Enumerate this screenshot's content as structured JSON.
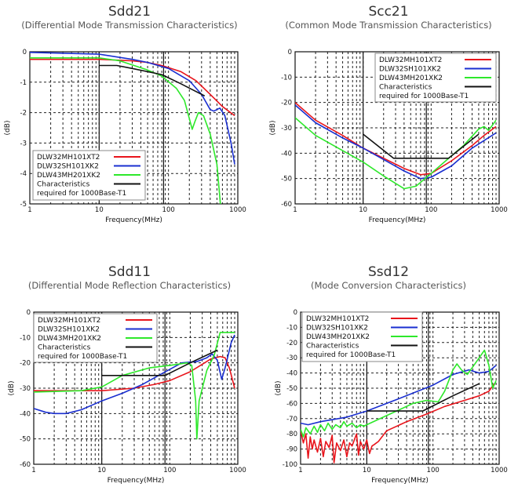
{
  "chart_data": [
    {
      "type": "line",
      "title": "Sdd21",
      "subtitle": "(Differential Mode Transmission Characteristics)",
      "xlabel": "Frequency(MHz)",
      "ylabel": "(dB)",
      "xscale": "log",
      "xlim": [
        1,
        1000
      ],
      "ylim": [
        -5,
        0
      ],
      "xticks": [
        "1",
        "10",
        "100",
        "1000"
      ],
      "yticks": [
        0,
        -1,
        -2,
        -3,
        -4,
        -5
      ],
      "grid": true,
      "legend": "bottom-left",
      "series": [
        {
          "name": "DLW32MH101XT2",
          "color": "#e8141b",
          "points": [
            [
              1,
              -0.25
            ],
            [
              10,
              -0.25
            ],
            [
              30,
              -0.3
            ],
            [
              50,
              -0.35
            ],
            [
              80,
              -0.45
            ],
            [
              150,
              -0.65
            ],
            [
              250,
              -0.95
            ],
            [
              400,
              -1.4
            ],
            [
              600,
              -1.8
            ],
            [
              900,
              -2.1
            ]
          ]
        },
        {
          "name": "DLW32SH101XK2",
          "color": "#1a2fd0",
          "points": [
            [
              1,
              -0.02
            ],
            [
              10,
              -0.08
            ],
            [
              30,
              -0.25
            ],
            [
              50,
              -0.35
            ],
            [
              100,
              -0.55
            ],
            [
              200,
              -0.95
            ],
            [
              300,
              -1.4
            ],
            [
              400,
              -1.9
            ],
            [
              450,
              -1.95
            ],
            [
              550,
              -1.85
            ],
            [
              650,
              -2.1
            ],
            [
              800,
              -3.0
            ],
            [
              900,
              -3.7
            ]
          ]
        },
        {
          "name": "DLW43MH201XK2",
          "color": "#2de82a",
          "points": [
            [
              1,
              -0.2
            ],
            [
              10,
              -0.2
            ],
            [
              20,
              -0.3
            ],
            [
              50,
              -0.6
            ],
            [
              80,
              -0.8
            ],
            [
              130,
              -1.2
            ],
            [
              170,
              -1.6
            ],
            [
              200,
              -2.2
            ],
            [
              220,
              -2.55
            ],
            [
              240,
              -2.3
            ],
            [
              270,
              -2.0
            ],
            [
              320,
              -2.1
            ],
            [
              400,
              -2.7
            ],
            [
              500,
              -3.7
            ],
            [
              560,
              -5.0
            ]
          ]
        },
        {
          "name": "Characteristics required for 1000Base-T1",
          "name_lines": [
            "Characteristics",
            "required for 1000Base-T1"
          ],
          "color": "#111111",
          "points": [
            [
              10,
              -0.45
            ],
            [
              18,
              -0.45
            ],
            [
              30,
              -0.55
            ],
            [
              80,
              -0.75
            ],
            [
              150,
              -1.05
            ],
            [
              333,
              -1.45
            ]
          ]
        }
      ]
    },
    {
      "type": "line",
      "title": "Scc21",
      "subtitle": "(Common Mode Transmission Characteristics)",
      "xlabel": "Frequency(MHz)",
      "ylabel": "(dB)",
      "xscale": "log",
      "xlim": [
        1,
        1000
      ],
      "ylim": [
        -60,
        0
      ],
      "xticks": [
        "1",
        "10",
        "100",
        "1000"
      ],
      "yticks": [
        0,
        -10,
        -20,
        -30,
        -40,
        -50,
        -60
      ],
      "grid": true,
      "legend": "top-right",
      "series": [
        {
          "name": "DLW32MH101XT2",
          "color": "#e8141b",
          "points": [
            [
              1,
              -20
            ],
            [
              2,
              -27
            ],
            [
              5,
              -33
            ],
            [
              10,
              -38
            ],
            [
              20,
              -42
            ],
            [
              40,
              -46
            ],
            [
              70,
              -48.5
            ],
            [
              100,
              -48
            ],
            [
              200,
              -43
            ],
            [
              400,
              -37
            ],
            [
              600,
              -33
            ],
            [
              900,
              -29.5
            ]
          ]
        },
        {
          "name": "DLW32SH101XK2",
          "color": "#1a2fd0",
          "points": [
            [
              1,
              -21
            ],
            [
              2,
              -28
            ],
            [
              5,
              -34
            ],
            [
              10,
              -38
            ],
            [
              20,
              -42.5
            ],
            [
              40,
              -47
            ],
            [
              70,
              -50
            ],
            [
              100,
              -49.5
            ],
            [
              200,
              -45
            ],
            [
              400,
              -38
            ],
            [
              600,
              -35
            ],
            [
              900,
              -32
            ]
          ]
        },
        {
          "name": "DLW43MH201XK2",
          "color": "#2de82a",
          "points": [
            [
              1,
              -26
            ],
            [
              2,
              -33
            ],
            [
              5,
              -39
            ],
            [
              10,
              -43.5
            ],
            [
              20,
              -49
            ],
            [
              40,
              -54
            ],
            [
              60,
              -53
            ],
            [
              100,
              -48
            ],
            [
              200,
              -41
            ],
            [
              300,
              -37
            ],
            [
              500,
              -30.5
            ],
            [
              600,
              -29.5
            ],
            [
              700,
              -31
            ],
            [
              900,
              -27
            ]
          ]
        },
        {
          "name": "Characteristics required for 1000Base-T1",
          "name_lines": [
            "Characteristics",
            "required for 1000Base-T1"
          ],
          "color": "#111111",
          "points": [
            [
              10,
              -32.5
            ],
            [
              28,
              -42
            ],
            [
              180,
              -42
            ],
            [
              500,
              -32.5
            ]
          ]
        }
      ]
    },
    {
      "type": "line",
      "title": "Sdd11",
      "subtitle": "(Differential Mode Reflection Characteristics)",
      "xlabel": "Frequency(MHz)",
      "ylabel": "(dB)",
      "xscale": "log",
      "xlim": [
        1,
        1000
      ],
      "ylim": [
        -60,
        0
      ],
      "xticks": [
        "1",
        "10",
        "100",
        "1000"
      ],
      "yticks": [
        0,
        -10,
        -20,
        -30,
        -40,
        -50,
        -60
      ],
      "grid": true,
      "legend": "top-left",
      "series": [
        {
          "name": "DLW32MH101XT2",
          "color": "#e8141b",
          "points": [
            [
              1,
              -31
            ],
            [
              5,
              -31
            ],
            [
              10,
              -31
            ],
            [
              30,
              -30
            ],
            [
              60,
              -28.5
            ],
            [
              100,
              -27
            ],
            [
              200,
              -23.5
            ],
            [
              400,
              -18.5
            ],
            [
              550,
              -17.5
            ],
            [
              650,
              -18
            ],
            [
              750,
              -22
            ],
            [
              900,
              -30
            ]
          ]
        },
        {
          "name": "DLW32SH101XK2",
          "color": "#1a2fd0",
          "points": [
            [
              1,
              -38
            ],
            [
              1.5,
              -39.5
            ],
            [
              2,
              -40
            ],
            [
              3,
              -40
            ],
            [
              5,
              -38.5
            ],
            [
              10,
              -35
            ],
            [
              20,
              -32
            ],
            [
              40,
              -28.5
            ],
            [
              80,
              -24
            ],
            [
              150,
              -20
            ],
            [
              250,
              -19.5
            ],
            [
              350,
              -18
            ],
            [
              420,
              -16.5
            ],
            [
              500,
              -19
            ],
            [
              580,
              -26.5
            ],
            [
              650,
              -22
            ],
            [
              800,
              -12
            ],
            [
              900,
              -9
            ]
          ]
        },
        {
          "name": "DLW43MH201XK2",
          "color": "#2de82a",
          "points": [
            [
              1,
              -31.5
            ],
            [
              5,
              -31
            ],
            [
              10,
              -29.5
            ],
            [
              20,
              -25
            ],
            [
              50,
              -22
            ],
            [
              100,
              -21
            ],
            [
              180,
              -20
            ],
            [
              210,
              -21
            ],
            [
              240,
              -35
            ],
            [
              250,
              -50
            ],
            [
              270,
              -35
            ],
            [
              350,
              -23
            ],
            [
              450,
              -17
            ],
            [
              550,
              -8
            ],
            [
              700,
              -8
            ],
            [
              900,
              -8
            ]
          ]
        },
        {
          "name": "Characteristics required for 1000Base-T1",
          "name_lines": [
            "Characteristics",
            "required for 1000Base-T1"
          ],
          "color": "#111111",
          "points": [
            [
              10,
              -25
            ],
            [
              85,
              -25
            ],
            [
              200,
              -20
            ],
            [
              500,
              -15
            ]
          ]
        }
      ]
    },
    {
      "type": "line",
      "title": "Ssd12",
      "subtitle": "(Mode Conversion Characteristics)",
      "xlabel": "Frequency(MHz)",
      "ylabel": "(dB)",
      "xscale": "log",
      "xlim": [
        1,
        1000
      ],
      "ylim": [
        -100,
        0
      ],
      "xticks": [
        "1",
        "10",
        "100",
        "1000"
      ],
      "yticks": [
        0,
        -10,
        -20,
        -30,
        -40,
        -50,
        -60,
        -70,
        -80,
        -90,
        -100
      ],
      "grid": true,
      "legend": "top-left",
      "series": [
        {
          "name": "DLW32MH101XT2",
          "color": "#e8141b",
          "points": [
            [
              1,
              -78
            ],
            [
              1.1,
              -86
            ],
            [
              1.2,
              -80
            ],
            [
              1.3,
              -96
            ],
            [
              1.4,
              -82
            ],
            [
              1.5,
              -90
            ],
            [
              1.6,
              -84
            ],
            [
              1.8,
              -92
            ],
            [
              2,
              -83
            ],
            [
              2.2,
              -95
            ],
            [
              2.4,
              -85
            ],
            [
              2.7,
              -89
            ],
            [
              3,
              -81
            ],
            [
              3.2,
              -99
            ],
            [
              3.5,
              -86
            ],
            [
              4,
              -91
            ],
            [
              4.5,
              -84
            ],
            [
              5,
              -95
            ],
            [
              5.5,
              -86
            ],
            [
              6,
              -88
            ],
            [
              7,
              -80
            ],
            [
              7.5,
              -94
            ],
            [
              8,
              -85
            ],
            [
              9,
              -90
            ],
            [
              10,
              -84
            ],
            [
              11,
              -93
            ],
            [
              12,
              -88
            ],
            [
              13,
              -87
            ],
            [
              15,
              -85
            ],
            [
              20,
              -78
            ],
            [
              40,
              -72
            ],
            [
              80,
              -67
            ],
            [
              150,
              -62
            ],
            [
              300,
              -58
            ],
            [
              500,
              -55
            ],
            [
              700,
              -52
            ],
            [
              850,
              -47
            ]
          ]
        },
        {
          "name": "DLW32SH101XK2",
          "color": "#1a2fd0",
          "points": [
            [
              1,
              -73
            ],
            [
              1.3,
              -74
            ],
            [
              2,
              -72
            ],
            [
              5,
              -69
            ],
            [
              10,
              -65
            ],
            [
              30,
              -57
            ],
            [
              100,
              -48
            ],
            [
              200,
              -41
            ],
            [
              350,
              -38
            ],
            [
              500,
              -40
            ],
            [
              700,
              -39
            ],
            [
              900,
              -35
            ]
          ]
        },
        {
          "name": "DLW43MH201XK2",
          "color": "#2de82a",
          "points": [
            [
              1,
              -77
            ],
            [
              1.1,
              -82
            ],
            [
              1.2,
              -76
            ],
            [
              1.4,
              -80
            ],
            [
              1.6,
              -75
            ],
            [
              1.8,
              -79
            ],
            [
              2,
              -74
            ],
            [
              2.3,
              -78
            ],
            [
              2.6,
              -73
            ],
            [
              3,
              -77
            ],
            [
              3.4,
              -74
            ],
            [
              4,
              -76
            ],
            [
              4.5,
              -72
            ],
            [
              5,
              -75
            ],
            [
              6,
              -73
            ],
            [
              7,
              -76
            ],
            [
              8,
              -74
            ],
            [
              9,
              -75
            ],
            [
              10,
              -74
            ],
            [
              20,
              -68
            ],
            [
              50,
              -60
            ],
            [
              80,
              -58
            ],
            [
              120,
              -59
            ],
            [
              150,
              -52
            ],
            [
              200,
              -38
            ],
            [
              230,
              -34
            ],
            [
              270,
              -38
            ],
            [
              330,
              -41
            ],
            [
              400,
              -36
            ],
            [
              500,
              -30
            ],
            [
              600,
              -25
            ],
            [
              700,
              -35
            ],
            [
              800,
              -50
            ],
            [
              900,
              -45
            ]
          ]
        },
        {
          "name": "Characteristics required for 1000Base-T1",
          "name_lines": [
            "Characteristics",
            "required for 1000Base-T1"
          ],
          "color": "#111111",
          "points": [
            [
              10,
              -65
            ],
            [
              70,
              -65
            ],
            [
              200,
              -55
            ],
            [
              500,
              -47
            ]
          ]
        }
      ]
    }
  ]
}
